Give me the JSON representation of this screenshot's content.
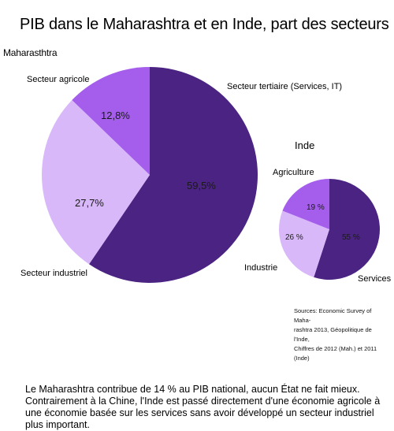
{
  "title": "PIB dans le Maharashtra et en Inde, part des secteurs",
  "colors": {
    "tertiary": "#4B2382",
    "industry": "#D9B8F9",
    "agriculture": "#A45EEB"
  },
  "chart_data": [
    {
      "type": "pie",
      "title": "Maharasthtra",
      "slices": [
        {
          "label": "Secteur tertiaire (Services, IT)",
          "value": 59.5,
          "value_label": "59,5%",
          "color": "#4B2382"
        },
        {
          "label": "Secteur industriel",
          "value": 27.7,
          "value_label": "27,7%",
          "color": "#D9B8F9"
        },
        {
          "label": "Secteur agricole",
          "value": 12.8,
          "value_label": "12,8%",
          "color": "#A45EEB"
        }
      ]
    },
    {
      "type": "pie",
      "title": "Inde",
      "slices": [
        {
          "label": "Services",
          "value": 55,
          "value_label": "55 %",
          "color": "#4B2382"
        },
        {
          "label": "Industrie",
          "value": 26,
          "value_label": "26 %",
          "color": "#D9B8F9"
        },
        {
          "label": "Agriculture",
          "value": 19,
          "value_label": "19 %",
          "color": "#A45EEB"
        }
      ]
    }
  ],
  "source_lines": [
    "Sources: Economic Survey of Maha-",
    "rashtra 2013, Géopolitique de l'Inde,",
    "Chiffres de 2012 (Mah.) et 2011 (Inde)"
  ],
  "caption": "Le Maharashtra contribue de 14 % au PIB national, aucun État ne fait mieux. Contrairement à la Chine, l'Inde est passé directement d'une économie agricole à une économie basée sur les services sans avoir développé un secteur industriel plus important."
}
